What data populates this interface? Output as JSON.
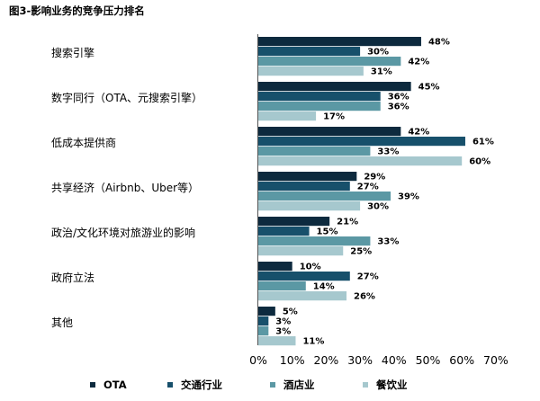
{
  "chart_data": {
    "type": "bar",
    "orientation": "horizontal",
    "title": "图3-影响业务的竞争压力排名",
    "categories": [
      "搜索引擎",
      "数字同行（OTA、元搜索引擎）",
      "低成本提供商",
      "共享经济（Airbnb、Uber等）",
      "政治/文化环境对旅游业的影响",
      "政府立法",
      "其他"
    ],
    "series": [
      {
        "name": "OTA",
        "color": "#0d2a3e",
        "values": [
          48,
          45,
          42,
          29,
          21,
          10,
          5
        ]
      },
      {
        "name": "交通行业",
        "color": "#17506b",
        "values": [
          30,
          36,
          61,
          27,
          15,
          27,
          3
        ]
      },
      {
        "name": "酒店业",
        "color": "#5b98a4",
        "values": [
          42,
          36,
          33,
          39,
          33,
          14,
          3
        ]
      },
      {
        "name": "餐饮业",
        "color": "#a6c8ce",
        "values": [
          31,
          17,
          60,
          30,
          25,
          26,
          11
        ]
      }
    ],
    "value_suffix": "%",
    "xlim": [
      0,
      70
    ],
    "xticks": [
      "0%",
      "10%",
      "20%",
      "30%",
      "40%",
      "50%",
      "60%",
      "70%"
    ],
    "grid": false,
    "legend_position": "bottom"
  }
}
